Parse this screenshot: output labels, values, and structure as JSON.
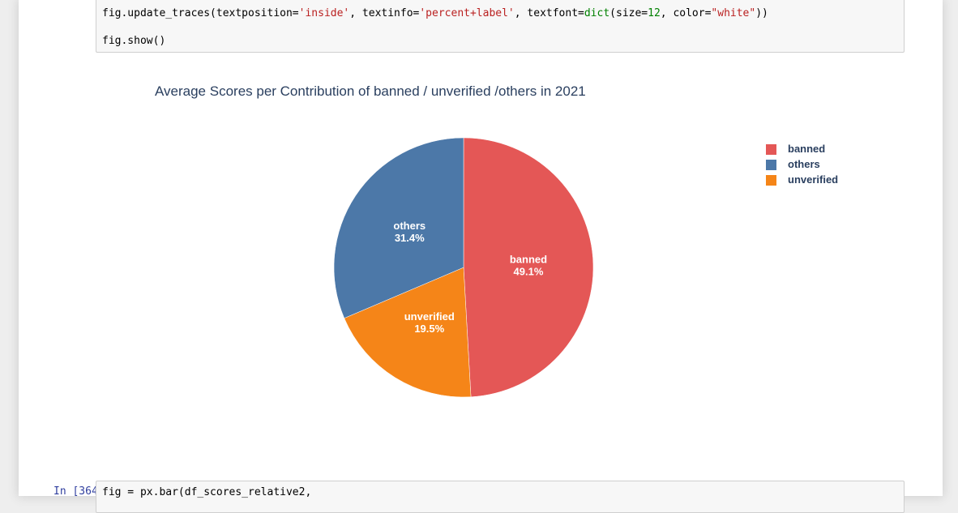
{
  "cells": {
    "top_code": {
      "line1": {
        "p1": "fig.update_traces(textposition=",
        "s1": "'inside'",
        "p2": ", textinfo=",
        "s2": "'percent+label'",
        "p3": ", textfont=",
        "b1": "dict",
        "p4": "(size=",
        "n1": "12",
        "p5": ", color=",
        "s3": "\"white\"",
        "p6": "))"
      },
      "line2": "fig.show()"
    },
    "bottom_prompt": "In [364]:",
    "bottom_code_line": "fig = px.bar(df_scores_relative2,"
  },
  "chart_data": {
    "type": "pie",
    "title": "Average Scores per Contribution of banned / unverified /others in 2021",
    "textinfo": "percent+label",
    "slices": [
      {
        "label": "banned",
        "percent": 49.1,
        "percent_text": "49.1%",
        "color": "#e45756"
      },
      {
        "label": "unverified",
        "percent": 19.5,
        "percent_text": "19.5%",
        "color": "#f58518"
      },
      {
        "label": "others",
        "percent": 31.4,
        "percent_text": "31.4%",
        "color": "#4c78a8"
      }
    ],
    "legend": {
      "placement": "top-right",
      "entries": [
        {
          "label": "banned",
          "color": "#e45756"
        },
        {
          "label": "others",
          "color": "#4c78a8"
        },
        {
          "label": "unverified",
          "color": "#f58518"
        }
      ]
    }
  }
}
